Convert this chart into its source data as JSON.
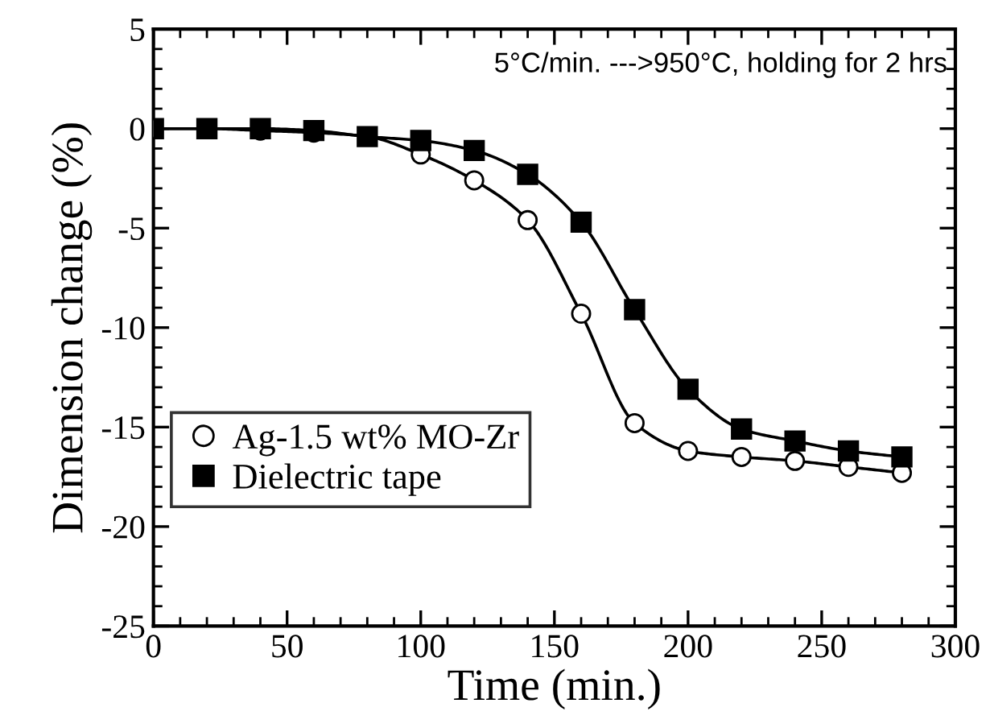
{
  "chart_data": {
    "type": "line",
    "xlabel": "Time (min.)",
    "ylabel": "Dimension change (%)",
    "annotations": [
      "5°C/min. --->950°C, holding for 2 hrs"
    ],
    "x": [
      0,
      20,
      40,
      60,
      80,
      100,
      120,
      140,
      160,
      180,
      200,
      220,
      240,
      260,
      280
    ],
    "series": [
      {
        "name": "Ag-1.5 wt% MO-Zr",
        "color": "#000000",
        "marker": "circle",
        "values": [
          0,
          0,
          -0.1,
          -0.2,
          -0.4,
          -1.3,
          -2.6,
          -4.6,
          -9.3,
          -14.8,
          -16.2,
          -16.5,
          -16.7,
          -17.0,
          -17.3
        ]
      },
      {
        "name": "Dielectric tape",
        "color": "#000000",
        "marker": "square",
        "values": [
          0,
          0,
          0,
          -0.1,
          -0.4,
          -0.6,
          -1.1,
          -2.3,
          -4.7,
          -9.1,
          -13.1,
          -15.1,
          -15.7,
          -16.2,
          -16.5
        ]
      }
    ],
    "xlim": [
      0,
      300
    ],
    "xticks": [
      0,
      50,
      100,
      150,
      200,
      250,
      300
    ],
    "ylim": [
      -25,
      5
    ],
    "yticks": [
      -25,
      -20,
      -15,
      -10,
      -5,
      0,
      5
    ],
    "grid": false,
    "legend": "bottom left",
    "line_style": "solid"
  }
}
